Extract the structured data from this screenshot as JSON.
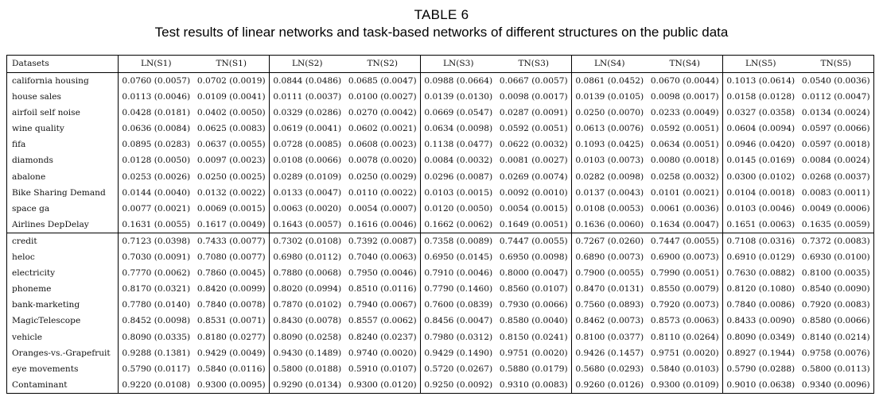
{
  "caption": {
    "label": "TABLE 6",
    "title": "Test results of linear networks and task-based networks of different structures on the public data"
  },
  "table": {
    "headers": [
      "Datasets",
      "LN(S1)",
      "TN(S1)",
      "LN(S2)",
      "TN(S2)",
      "LN(S3)",
      "TN(S3)",
      "LN(S4)",
      "TN(S4)",
      "LN(S5)",
      "TN(S5)"
    ],
    "group1": [
      [
        "california housing",
        "0.0760 (0.0057)",
        "0.0702 (0.0019)",
        "0.0844 (0.0486)",
        "0.0685 (0.0047)",
        "0.0988 (0.0664)",
        "0.0667 (0.0057)",
        "0.0861 (0.0452)",
        "0.0670 (0.0044)",
        "0.1013 (0.0614)",
        "0.0540 (0.0036)"
      ],
      [
        "house sales",
        "0.0113 (0.0046)",
        "0.0109 (0.0041)",
        "0.0111 (0.0037)",
        "0.0100 (0.0027)",
        "0.0139 (0.0130)",
        "0.0098 (0.0017)",
        "0.0139 (0.0105)",
        "0.0098 (0.0017)",
        "0.0158 (0.0128)",
        "0.0112 (0.0047)"
      ],
      [
        "airfoil self noise",
        "0.0428 (0.0181)",
        "0.0402 (0.0050)",
        "0.0329 (0.0286)",
        "0.0270 (0.0042)",
        "0.0669 (0.0547)",
        "0.0287 (0.0091)",
        "0.0250 (0.0070)",
        "0.0233 (0.0049)",
        "0.0327 (0.0358)",
        "0.0134 (0.0024)"
      ],
      [
        "wine quality",
        "0.0636 (0.0084)",
        "0.0625 (0.0083)",
        "0.0619 (0.0041)",
        "0.0602 (0.0021)",
        "0.0634 (0.0098)",
        "0.0592 (0.0051)",
        "0.0613 (0.0076)",
        "0.0592 (0.0051)",
        "0.0604 (0.0094)",
        "0.0597 (0.0066)"
      ],
      [
        "fifa",
        "0.0895 (0.0283)",
        "0.0637 (0.0055)",
        "0.0728 (0.0085)",
        "0.0608 (0.0023)",
        "0.1138 (0.0477)",
        "0.0622 (0.0032)",
        "0.1093 (0.0425)",
        "0.0634 (0.0051)",
        "0.0946 (0.0420)",
        "0.0597 (0.0018)"
      ],
      [
        "diamonds",
        "0.0128 (0.0050)",
        "0.0097 (0.0023)",
        "0.0108 (0.0066)",
        "0.0078 (0.0020)",
        "0.0084 (0.0032)",
        "0.0081 (0.0027)",
        "0.0103 (0.0073)",
        "0.0080 (0.0018)",
        "0.0145 (0.0169)",
        "0.0084 (0.0024)"
      ],
      [
        "abalone",
        "0.0253 (0.0026)",
        "0.0250 (0.0025)",
        "0.0289 (0.0109)",
        "0.0250 (0.0029)",
        "0.0296 (0.0087)",
        "0.0269 (0.0074)",
        "0.0282 (0.0098)",
        "0.0258 (0.0032)",
        "0.0300 (0.0102)",
        "0.0268 (0.0037)"
      ],
      [
        "Bike Sharing Demand",
        "0.0144 (0.0040)",
        "0.0132 (0.0022)",
        "0.0133 (0.0047)",
        "0.0110 (0.0022)",
        "0.0103 (0.0015)",
        "0.0092 (0.0010)",
        "0.0137 (0.0043)",
        "0.0101 (0.0021)",
        "0.0104 (0.0018)",
        "0.0083 (0.0011)"
      ],
      [
        "space ga",
        "0.0077 (0.0021)",
        "0.0069 (0.0015)",
        "0.0063 (0.0020)",
        "0.0054 (0.0007)",
        "0.0120 (0.0050)",
        "0.0054 (0.0015)",
        "0.0108 (0.0053)",
        "0.0061 (0.0036)",
        "0.0103 (0.0046)",
        "0.0049 (0.0006)"
      ],
      [
        "Airlines DepDelay",
        "0.1631 (0.0055)",
        "0.1617 (0.0049)",
        "0.1643 (0.0057)",
        "0.1616 (0.0046)",
        "0.1662 (0.0062)",
        "0.1649 (0.0051)",
        "0.1636 (0.0060)",
        "0.1634 (0.0047)",
        "0.1651 (0.0063)",
        "0.1635 (0.0059)"
      ]
    ],
    "group2": [
      [
        "credit",
        "0.7123 (0.0398)",
        "0.7433 (0.0077)",
        "0.7302 (0.0108)",
        "0.7392 (0.0087)",
        "0.7358 (0.0089)",
        "0.7447 (0.0055)",
        "0.7267 (0.0260)",
        "0.7447 (0.0055)",
        "0.7108 (0.0316)",
        "0.7372 (0.0083)"
      ],
      [
        "heloc",
        "0.7030 (0.0091)",
        "0.7080 (0.0077)",
        "0.6980 (0.0112)",
        "0.7040 (0.0063)",
        "0.6950 (0.0145)",
        "0.6950 (0.0098)",
        "0.6890 (0.0073)",
        "0.6900 (0.0073)",
        "0.6910 (0.0129)",
        "0.6930 (0.0100)"
      ],
      [
        "electricity",
        "0.7770 (0.0062)",
        "0.7860 (0.0045)",
        "0.7880 (0.0068)",
        "0.7950 (0.0046)",
        "0.7910 (0.0046)",
        "0.8000 (0.0047)",
        "0.7900 (0.0055)",
        "0.7990 (0.0051)",
        "0.7630 (0.0882)",
        "0.8100 (0.0035)"
      ],
      [
        "phoneme",
        "0.8170 (0.0321)",
        "0.8420 (0.0099)",
        "0.8020 (0.0994)",
        "0.8510 (0.0116)",
        "0.7790 (0.1460)",
        "0.8560 (0.0107)",
        "0.8470 (0.0131)",
        "0.8550 (0.0079)",
        "0.8120 (0.1080)",
        "0.8540 (0.0090)"
      ],
      [
        "bank-marketing",
        "0.7780 (0.0140)",
        "0.7840 (0.0078)",
        "0.7870 (0.0102)",
        "0.7940 (0.0067)",
        "0.7600 (0.0839)",
        "0.7930 (0.0066)",
        "0.7560 (0.0893)",
        "0.7920 (0.0073)",
        "0.7840 (0.0086)",
        "0.7920 (0.0083)"
      ],
      [
        "MagicTelescope",
        "0.8452 (0.0098)",
        "0.8531 (0.0071)",
        "0.8430 (0.0078)",
        "0.8557 (0.0062)",
        "0.8456 (0.0047)",
        "0.8580 (0.0040)",
        "0.8462 (0.0073)",
        "0.8573 (0.0063)",
        "0.8433 (0.0090)",
        "0.8580 (0.0066)"
      ],
      [
        "vehicle",
        "0.8090 (0.0335)",
        "0.8180 (0.0277)",
        "0.8090 (0.0258)",
        "0.8240 (0.0237)",
        "0.7980 (0.0312)",
        "0.8150 (0.0241)",
        "0.8100 (0.0377)",
        "0.8110 (0.0264)",
        "0.8090 (0.0349)",
        "0.8140 (0.0214)"
      ],
      [
        "Oranges-vs.-Grapefruit",
        "0.9288 (0.1381)",
        "0.9429 (0.0049)",
        "0.9430 (0.1489)",
        "0.9740 (0.0020)",
        "0.9429 (0.1490)",
        "0.9751 (0.0020)",
        "0.9426 (0.1457)",
        "0.9751 (0.0020)",
        "0.8927 (0.1944)",
        "0.9758 (0.0076)"
      ],
      [
        "eye movements",
        "0.5790 (0.0117)",
        "0.5840 (0.0116)",
        "0.5800 (0.0188)",
        "0.5910 (0.0107)",
        "0.5720 (0.0267)",
        "0.5880 (0.0179)",
        "0.5680 (0.0293)",
        "0.5840 (0.0103)",
        "0.5790 (0.0288)",
        "0.5800 (0.0113)"
      ],
      [
        "Contaminant",
        "0.9220 (0.0108)",
        "0.9300 (0.0095)",
        "0.9290 (0.0134)",
        "0.9300 (0.0120)",
        "0.9250 (0.0092)",
        "0.9310 (0.0083)",
        "0.9260 (0.0126)",
        "0.9300 (0.0109)",
        "0.9010 (0.0638)",
        "0.9340 (0.0096)"
      ]
    ]
  }
}
